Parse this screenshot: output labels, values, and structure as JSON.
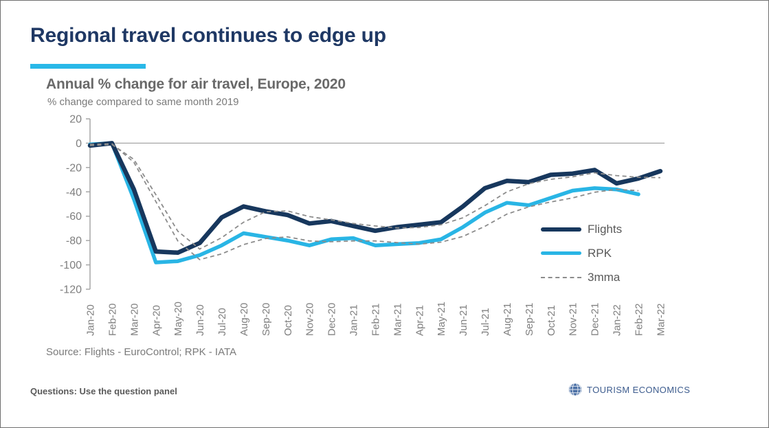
{
  "slide": {
    "title": "Regional travel continues to edge up",
    "footer_note": "Questions: Use the question panel",
    "logo_text": "TOURISM ECONOMICS",
    "accent_color": "#29B8E8",
    "title_color": "#1F3864"
  },
  "chart_data": {
    "type": "line",
    "title": "Annual % change for air travel, Europe, 2020",
    "subtitle": "% change compared to same month 2019",
    "source": "Source: Flights - EuroControl; RPK - IATA",
    "categories": [
      "Jan-20",
      "Feb-20",
      "Mar-20",
      "Apr-20",
      "May-20",
      "Jun-20",
      "Jul-20",
      "Aug-20",
      "Sep-20",
      "Oct-20",
      "Nov-20",
      "Dec-20",
      "Jan-21",
      "Feb-21",
      "Mar-21",
      "Apr-21",
      "May-21",
      "Jun-21",
      "Jul-21",
      "Aug-21",
      "Sep-21",
      "Oct-21",
      "Nov-21",
      "Dec-21",
      "Jan-22",
      "Feb-22",
      "Mar-22"
    ],
    "series": [
      {
        "name": "Flights",
        "color": "#17375D",
        "style": "solid",
        "values": [
          -2,
          0,
          -38,
          -89,
          -90,
          -82,
          -61,
          -52,
          -56,
          -59,
          -66,
          -64,
          -68,
          -72,
          -69,
          -67,
          -65,
          -52,
          -37,
          -31,
          -32,
          -26,
          -25,
          -22,
          -33,
          -29,
          -23
        ]
      },
      {
        "name": "RPK",
        "color": "#29B5E5",
        "style": "solid",
        "values": [
          -1,
          0,
          -46,
          -98,
          -97,
          -92,
          -84,
          -74,
          -77,
          -80,
          -84,
          -79,
          -78,
          -84,
          -83,
          -82,
          -79,
          -69,
          -57,
          -49,
          -51,
          -45,
          -39,
          -37,
          -38,
          -42,
          null
        ]
      },
      {
        "name": "3mma",
        "color": "#8c8c8c",
        "style": "dashed",
        "note": "trailing 3-month moving average, drawn as two dashed lines (one for Flights, one for RPK), computed from the series above"
      }
    ],
    "ylim": [
      -120,
      20
    ],
    "y_ticks": [
      20,
      0,
      -20,
      -40,
      -60,
      -80,
      -100,
      -120
    ],
    "grid": "zero-baseline-only",
    "legend": [
      "Flights",
      "RPK",
      "3mma"
    ],
    "legend_position": "inside-right"
  }
}
